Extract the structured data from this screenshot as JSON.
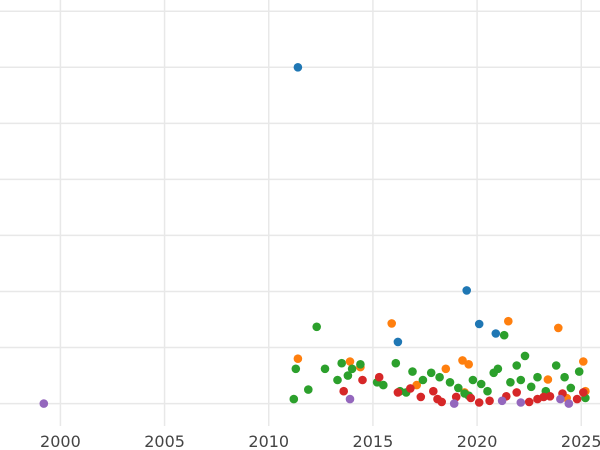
{
  "chart_data": {
    "type": "scatter",
    "title": "",
    "xlabel": "",
    "ylabel": "",
    "xlim": [
      1997.1,
      2025.9
    ],
    "ylim": [
      -0.4,
      7.2
    ],
    "grid": true,
    "legend": "none",
    "x_ticks": [
      2000,
      2005,
      2010,
      2015,
      2020,
      2025
    ],
    "x_tick_labels": [
      "2000",
      "2005",
      "2010",
      "2015",
      "2020",
      "2025"
    ],
    "y_gridlines": [
      0,
      1,
      2,
      3,
      4,
      5,
      6,
      7
    ],
    "series": [
      {
        "color": "#1f77b4",
        "points": [
          [
            2011.4,
            6.0
          ],
          [
            2019.5,
            2.02
          ],
          [
            2020.1,
            1.42
          ],
          [
            2020.9,
            1.25
          ],
          [
            2016.2,
            1.1
          ]
        ]
      },
      {
        "color": "#ff7f0e",
        "points": [
          [
            2011.4,
            0.8
          ],
          [
            2013.9,
            0.75
          ],
          [
            2014.4,
            0.65
          ],
          [
            2015.9,
            1.43
          ],
          [
            2019.3,
            0.77
          ],
          [
            2019.6,
            0.7
          ],
          [
            2018.5,
            0.62
          ],
          [
            2021.5,
            1.47
          ],
          [
            2023.9,
            1.35
          ],
          [
            2025.1,
            0.75
          ],
          [
            2025.2,
            0.22
          ],
          [
            2023.4,
            0.43
          ],
          [
            2019.4,
            0.2
          ],
          [
            2017.1,
            0.33
          ],
          [
            2024.3,
            0.1
          ]
        ]
      },
      {
        "color": "#2ca02c",
        "points": [
          [
            2011.3,
            0.62
          ],
          [
            2011.2,
            0.08
          ],
          [
            2011.9,
            0.25
          ],
          [
            2012.3,
            1.37
          ],
          [
            2012.7,
            0.62
          ],
          [
            2013.5,
            0.72
          ],
          [
            2013.3,
            0.42
          ],
          [
            2014.0,
            0.62
          ],
          [
            2014.4,
            0.7
          ],
          [
            2015.2,
            0.38
          ],
          [
            2015.5,
            0.33
          ],
          [
            2016.1,
            0.72
          ],
          [
            2016.3,
            0.22
          ],
          [
            2016.9,
            0.57
          ],
          [
            2017.4,
            0.42
          ],
          [
            2017.8,
            0.55
          ],
          [
            2018.2,
            0.47
          ],
          [
            2018.7,
            0.38
          ],
          [
            2019.1,
            0.28
          ],
          [
            2019.4,
            0.18
          ],
          [
            2019.6,
            0.14
          ],
          [
            2019.8,
            0.42
          ],
          [
            2020.2,
            0.35
          ],
          [
            2020.5,
            0.22
          ],
          [
            2020.8,
            0.55
          ],
          [
            2021.0,
            0.62
          ],
          [
            2021.3,
            1.22
          ],
          [
            2021.6,
            0.38
          ],
          [
            2021.9,
            0.68
          ],
          [
            2022.3,
            0.85
          ],
          [
            2022.6,
            0.3
          ],
          [
            2022.9,
            0.47
          ],
          [
            2023.3,
            0.22
          ],
          [
            2023.8,
            0.68
          ],
          [
            2024.2,
            0.47
          ],
          [
            2024.5,
            0.28
          ],
          [
            2024.9,
            0.57
          ],
          [
            2025.2,
            0.1
          ],
          [
            2013.8,
            0.5
          ],
          [
            2016.6,
            0.2
          ],
          [
            2022.1,
            0.42
          ]
        ]
      },
      {
        "color": "#d62728",
        "points": [
          [
            2013.6,
            0.22
          ],
          [
            2014.5,
            0.42
          ],
          [
            2015.3,
            0.47
          ],
          [
            2016.2,
            0.2
          ],
          [
            2016.8,
            0.27
          ],
          [
            2017.3,
            0.12
          ],
          [
            2017.9,
            0.22
          ],
          [
            2018.3,
            0.03
          ],
          [
            2019.0,
            0.12
          ],
          [
            2019.7,
            0.1
          ],
          [
            2020.1,
            0.02
          ],
          [
            2020.6,
            0.05
          ],
          [
            2021.4,
            0.13
          ],
          [
            2021.9,
            0.2
          ],
          [
            2022.5,
            0.03
          ],
          [
            2022.9,
            0.08
          ],
          [
            2023.5,
            0.13
          ],
          [
            2024.1,
            0.18
          ],
          [
            2024.8,
            0.08
          ],
          [
            2025.1,
            0.2
          ],
          [
            2018.1,
            0.08
          ],
          [
            2023.2,
            0.12
          ]
        ]
      },
      {
        "color": "#9467bd",
        "points": [
          [
            1999.2,
            0.0
          ],
          [
            2013.9,
            0.08
          ],
          [
            2018.9,
            0.0
          ],
          [
            2021.2,
            0.05
          ],
          [
            2022.1,
            0.02
          ],
          [
            2024.0,
            0.08
          ],
          [
            2024.4,
            0.0
          ]
        ]
      }
    ]
  }
}
